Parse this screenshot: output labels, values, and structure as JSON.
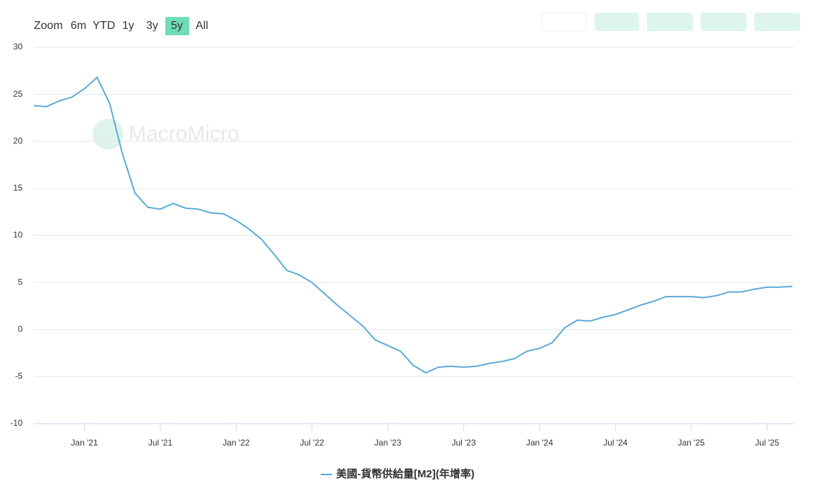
{
  "toolbar": {
    "zoom_label": "Zoom",
    "ranges": [
      "6m",
      "YTD",
      "1y",
      "3y",
      "5y",
      "All"
    ],
    "active": "5y"
  },
  "watermark": "MacroMicro",
  "chart_data": {
    "type": "line",
    "x": [
      "2020-09",
      "2020-10",
      "2020-11",
      "2020-12",
      "2021-01",
      "2021-02",
      "2021-03",
      "2021-04",
      "2021-05",
      "2021-06",
      "2021-07",
      "2021-08",
      "2021-09",
      "2021-10",
      "2021-11",
      "2021-12",
      "2022-01",
      "2022-02",
      "2022-03",
      "2022-04",
      "2022-05",
      "2022-06",
      "2022-07",
      "2022-08",
      "2022-09",
      "2022-10",
      "2022-11",
      "2022-12",
      "2023-01",
      "2023-02",
      "2023-03",
      "2023-04",
      "2023-05",
      "2023-06",
      "2023-07",
      "2023-08",
      "2023-09",
      "2023-10",
      "2023-11",
      "2023-12",
      "2024-01",
      "2024-02",
      "2024-03",
      "2024-04",
      "2024-05",
      "2024-06",
      "2024-07",
      "2024-08",
      "2024-09",
      "2024-10",
      "2024-11",
      "2024-12",
      "2025-01",
      "2025-02",
      "2025-03",
      "2025-04",
      "2025-05",
      "2025-06",
      "2025-07",
      "2025-08",
      "2025-09"
    ],
    "series": [
      {
        "name": "美國-貨幣供給量[M2](年增率)",
        "color": "#5aabd6",
        "values": [
          23.8,
          23.7,
          24.3,
          24.7,
          25.6,
          26.8,
          24.0,
          18.7,
          14.5,
          13.0,
          12.8,
          13.4,
          12.9,
          12.8,
          12.4,
          12.3,
          11.6,
          10.7,
          9.6,
          8.0,
          6.3,
          5.8,
          5.0,
          3.8,
          2.6,
          1.5,
          0.4,
          -1.1,
          -1.7,
          -2.3,
          -3.8,
          -4.6,
          -4.0,
          -3.9,
          -4.0,
          -3.9,
          -3.6,
          -3.4,
          -3.1,
          -2.3,
          -2.0,
          -1.4,
          0.2,
          1.0,
          0.9,
          1.3,
          1.6,
          2.1,
          2.6,
          3.0,
          3.5,
          3.5,
          3.5,
          3.4,
          3.6,
          4.0,
          4.0,
          4.3,
          4.5,
          4.5,
          4.6
        ]
      }
    ],
    "xlim": [
      "2020-09",
      "2025-09"
    ],
    "xticks": [
      {
        "value": "2021-01",
        "label": "Jan '21"
      },
      {
        "value": "2021-07",
        "label": "Jul '21"
      },
      {
        "value": "2022-01",
        "label": "Jan '22"
      },
      {
        "value": "2022-07",
        "label": "Jul '22"
      },
      {
        "value": "2023-01",
        "label": "Jan '23"
      },
      {
        "value": "2023-07",
        "label": "Jul '23"
      },
      {
        "value": "2024-01",
        "label": "Jan '24"
      },
      {
        "value": "2024-07",
        "label": "Jul '24"
      },
      {
        "value": "2025-01",
        "label": "Jan '25"
      },
      {
        "value": "2025-07",
        "label": "Jul '25"
      }
    ],
    "ylim": [
      -10,
      30
    ],
    "yticks": [
      -10,
      -5,
      0,
      5,
      10,
      15,
      20,
      25,
      30
    ],
    "grid": true
  }
}
